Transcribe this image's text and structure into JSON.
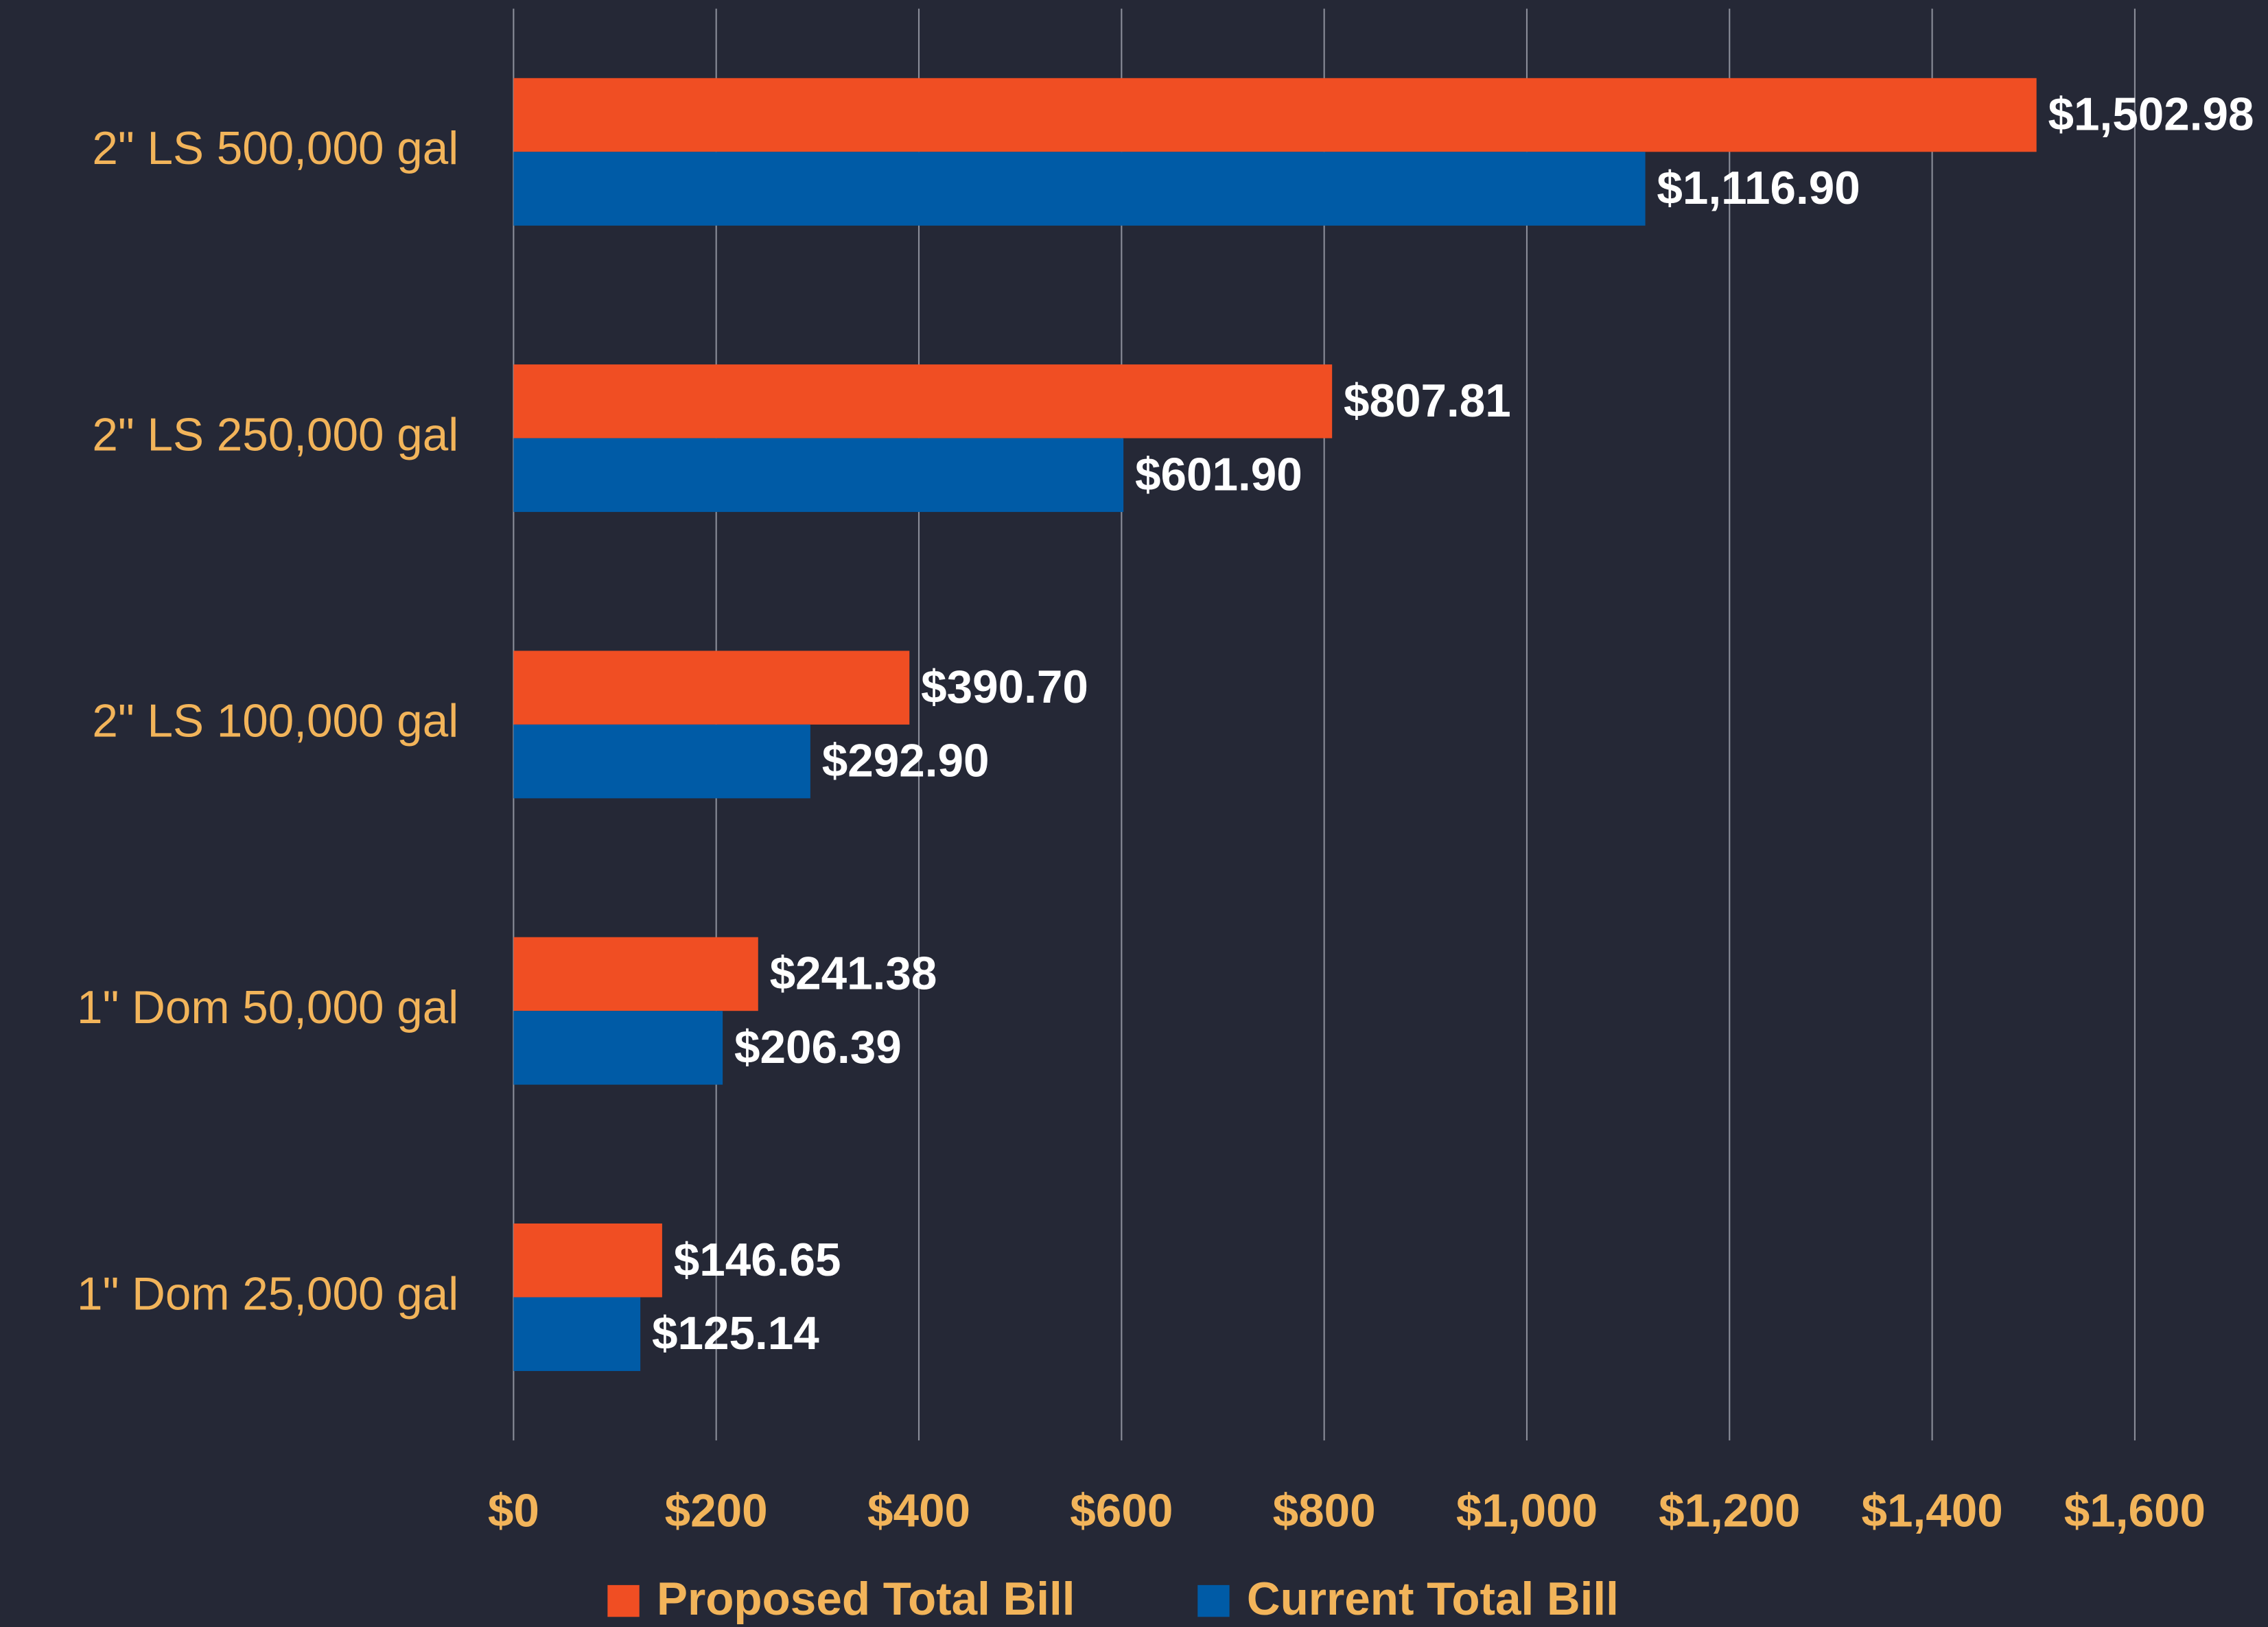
{
  "chart_data": {
    "type": "bar",
    "orientation": "horizontal",
    "categories": [
      "2\" LS 500,000 gal",
      "2\" LS 250,000 gal",
      "2\" LS 100,000 gal",
      "1\" Dom 50,000 gal",
      "1\" Dom 25,000 gal"
    ],
    "series": [
      {
        "name": "Proposed Total Bill",
        "color": "#f04e23",
        "values": [
          1502.98,
          807.81,
          390.7,
          241.38,
          146.65
        ],
        "value_labels": [
          "$1,502.98",
          "$807.81",
          "$390.70",
          "$241.38",
          "$146.65"
        ]
      },
      {
        "name": "Current Total Bill",
        "color": "#005ba6",
        "values": [
          1116.9,
          601.9,
          292.9,
          206.39,
          125.14
        ],
        "value_labels": [
          "$1,116.90",
          "$601.90",
          "$292.90",
          "$206.39",
          "$125.14"
        ]
      }
    ],
    "xlim": [
      0,
      1600
    ],
    "xticks": [
      {
        "value": 0,
        "label": "$0"
      },
      {
        "value": 200,
        "label": "$200"
      },
      {
        "value": 400,
        "label": "$400"
      },
      {
        "value": 600,
        "label": "$600"
      },
      {
        "value": 800,
        "label": "$800"
      },
      {
        "value": 1000,
        "label": "$1,000"
      },
      {
        "value": 1200,
        "label": "$1,200"
      },
      {
        "value": 1400,
        "label": "$1,400"
      },
      {
        "value": 1600,
        "label": "$1,600"
      }
    ],
    "grid": true,
    "legend": "bottom"
  }
}
